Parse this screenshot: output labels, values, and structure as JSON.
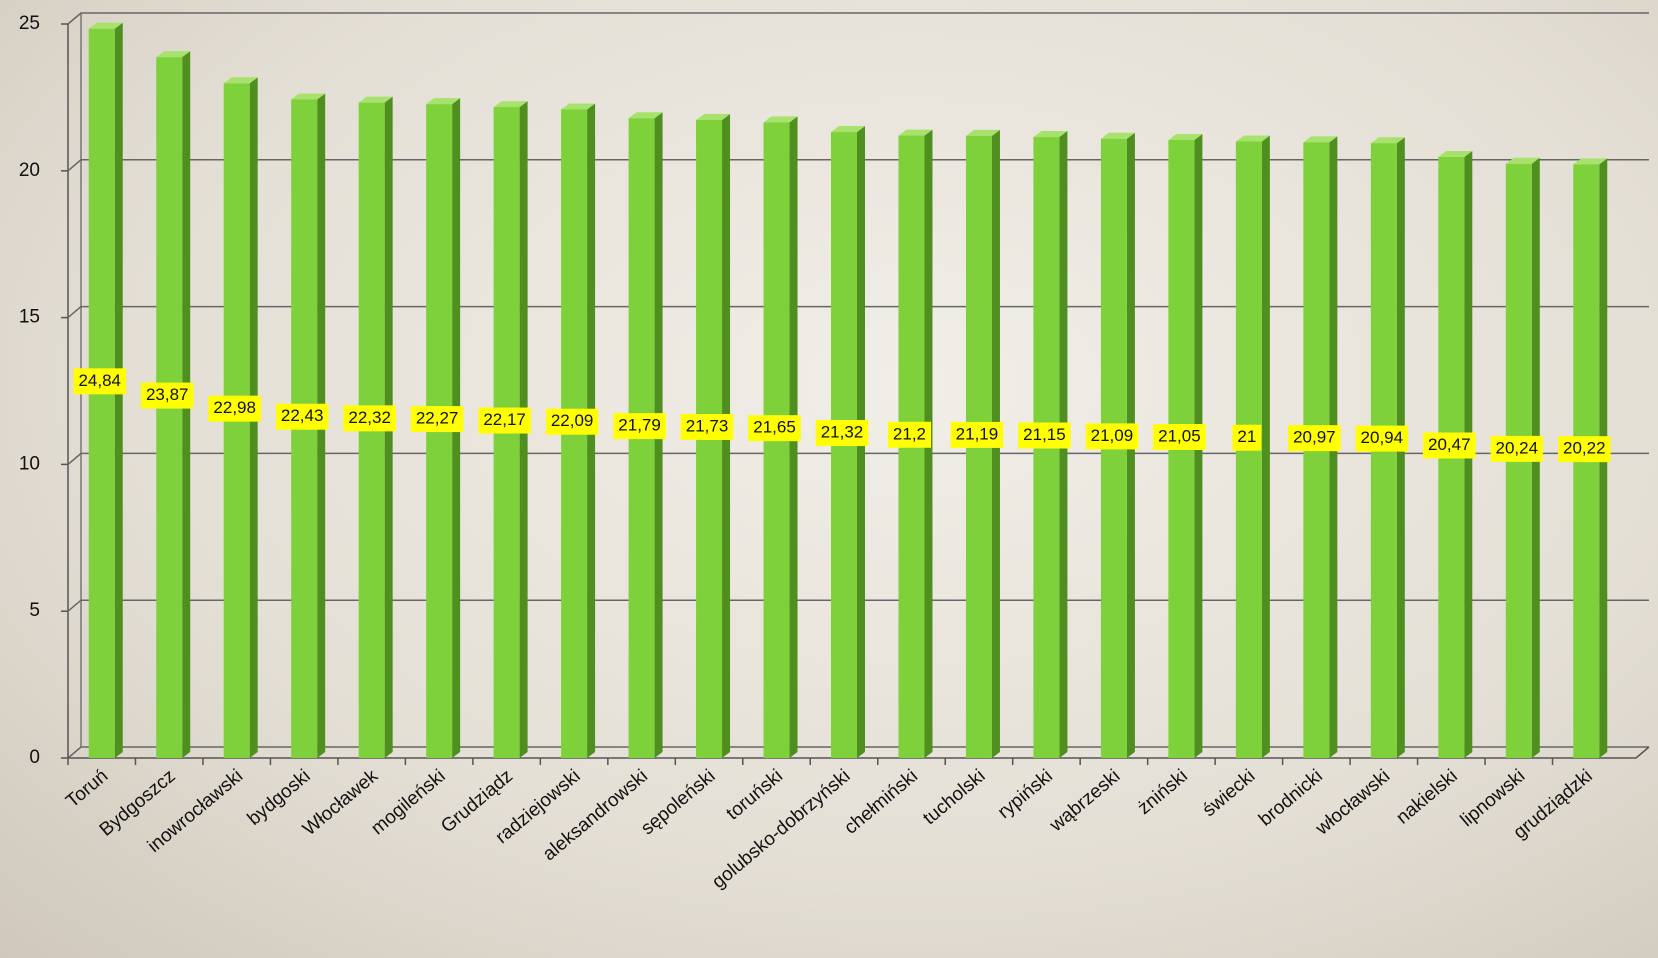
{
  "chart_data": {
    "type": "bar3d",
    "categories": [
      "Toruń",
      "Bydgoszcz",
      "inowrocławski",
      "bydgoski",
      "Włocławek",
      "mogileński",
      "Grudziądz",
      "radziejowski",
      "aleksandrowski",
      "sępoleński",
      "toruński",
      "golubsko-dobrzyński",
      "chełmiński",
      "tucholski",
      "rypiński",
      "wąbrzeski",
      "żniński",
      "świecki",
      "brodnicki",
      "włocławski",
      "nakielski",
      "lipnowski",
      "grudziądzki"
    ],
    "values": [
      24.84,
      23.87,
      22.98,
      22.43,
      22.32,
      22.27,
      22.17,
      22.09,
      21.79,
      21.73,
      21.65,
      21.32,
      21.2,
      21.19,
      21.15,
      21.09,
      21.05,
      21,
      20.97,
      20.94,
      20.47,
      20.24,
      20.22
    ],
    "value_labels": [
      "24,84",
      "23,87",
      "22,98",
      "22,43",
      "22,32",
      "22,27",
      "22,17",
      "22,09",
      "21,79",
      "21,73",
      "21,65",
      "21,32",
      "21,2",
      "21,19",
      "21,15",
      "21,09",
      "21,05",
      "21",
      "20,97",
      "20,94",
      "20,47",
      "20,24",
      "20,22"
    ],
    "color": "#7ed13a",
    "label_color": "#ffff00",
    "ylim": [
      0,
      25
    ],
    "yticks": [
      0,
      5,
      10,
      15,
      20,
      25
    ],
    "grid": true
  }
}
